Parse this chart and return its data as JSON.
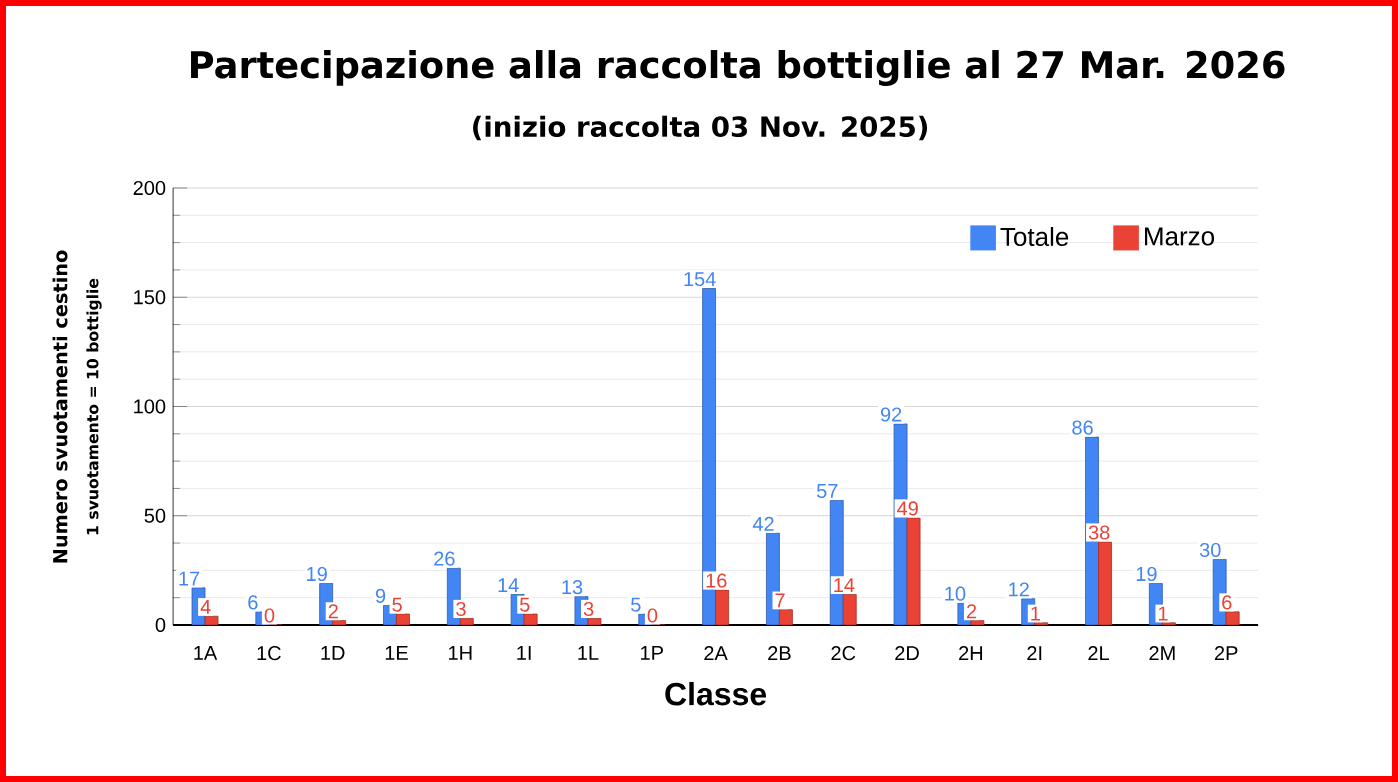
{
  "chart_data": {
    "type": "bar",
    "title": "Partecipazione alla raccolta bottiglie al 27 Mar. 2026",
    "subtitle": "(inizio raccolta 03 Nov. 2025)",
    "xlabel": "Classe",
    "ylabel": "Numero svuotamenti cestino",
    "annotations": [
      "1 svuotamento = 10 bottiglie"
    ],
    "categories": [
      "1A",
      "1C",
      "1D",
      "1E",
      "1H",
      "1I",
      "1L",
      "1P",
      "2A",
      "2B",
      "2C",
      "2D",
      "2H",
      "2I",
      "2L",
      "2M",
      "2P"
    ],
    "series": [
      {
        "name": "Totale",
        "color": "#4285f4",
        "values": [
          17,
          6,
          19,
          9,
          26,
          14,
          13,
          5,
          154,
          42,
          57,
          92,
          10,
          12,
          86,
          19,
          30
        ]
      },
      {
        "name": "Marzo",
        "color": "#ea4335",
        "values": [
          4,
          0,
          2,
          5,
          3,
          5,
          3,
          0,
          16,
          7,
          14,
          49,
          2,
          1,
          38,
          1,
          6
        ]
      }
    ],
    "ylim": [
      0,
      200
    ],
    "yticks": [
      0,
      50,
      100,
      150,
      200
    ],
    "grid": "y",
    "legend": "top right",
    "data_labels": true
  }
}
